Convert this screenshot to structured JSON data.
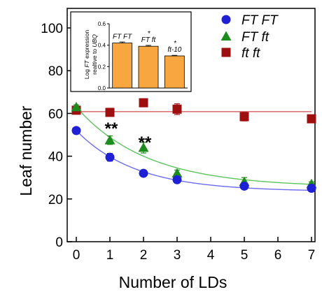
{
  "chart_data": [
    {
      "type": "scatter",
      "xlabel": "Number of LDs",
      "ylabel": "Leaf number",
      "xlim": [
        0,
        7
      ],
      "ylim": [
        0,
        100
      ],
      "xticks": [
        "0",
        "1",
        "2",
        "3",
        "4",
        "5",
        "6",
        "7"
      ],
      "yticks": [
        "0",
        "20",
        "40",
        "60",
        "80",
        "100"
      ],
      "legend_position": "top-right",
      "series": [
        {
          "name": "FT FT",
          "marker": "circle",
          "color": "#1f1fd6",
          "fit_color": "#6b6bf0",
          "x": [
            0,
            1,
            2,
            3,
            5,
            7
          ],
          "y": [
            52,
            39.5,
            32,
            29,
            26,
            25
          ],
          "errors": [
            1.2,
            1.8,
            1,
            1.5,
            1,
            1
          ],
          "fit": "exponential-decay"
        },
        {
          "name": "FT ft",
          "marker": "triangle",
          "color": "#1c8c1c",
          "fit_color": "#5cc45c",
          "x": [
            0,
            1,
            2,
            3,
            5,
            7
          ],
          "y": [
            63,
            47.5,
            44,
            32,
            28,
            27
          ],
          "errors": [
            1,
            2,
            2.5,
            1.5,
            2,
            1
          ],
          "fit": "exponential-decay"
        },
        {
          "name": "ft ft",
          "marker": "square",
          "color": "#9e1010",
          "fit_color": "#d46060",
          "x": [
            0,
            1,
            2,
            3,
            5,
            7
          ],
          "y": [
            61.5,
            60.5,
            65,
            62,
            58.5,
            57.5
          ],
          "errors": [
            1.5,
            1,
            1,
            2.5,
            2,
            1.5
          ],
          "fit": "constant"
        }
      ],
      "annotations": [
        {
          "text": "**",
          "x": 1
        },
        {
          "text": "**",
          "x": 2
        }
      ]
    },
    {
      "type": "bar",
      "ylabel_parts": [
        "Log ",
        "FT",
        " expression"
      ],
      "ylabel_line2_parts": [
        "realtive to ",
        "UBQ"
      ],
      "ylim": [
        0,
        0.6
      ],
      "yticks": [
        "0.0",
        "0.2",
        "0.4",
        "0.6"
      ],
      "categories": [
        "FT FT",
        "FT ft",
        "ft-10"
      ],
      "values": [
        0.42,
        0.39,
        0.3
      ],
      "errors": [
        0.01,
        0.008,
        0.005
      ],
      "bar_color": "#f7a640",
      "significance": [
        "",
        "*",
        "*"
      ]
    }
  ]
}
